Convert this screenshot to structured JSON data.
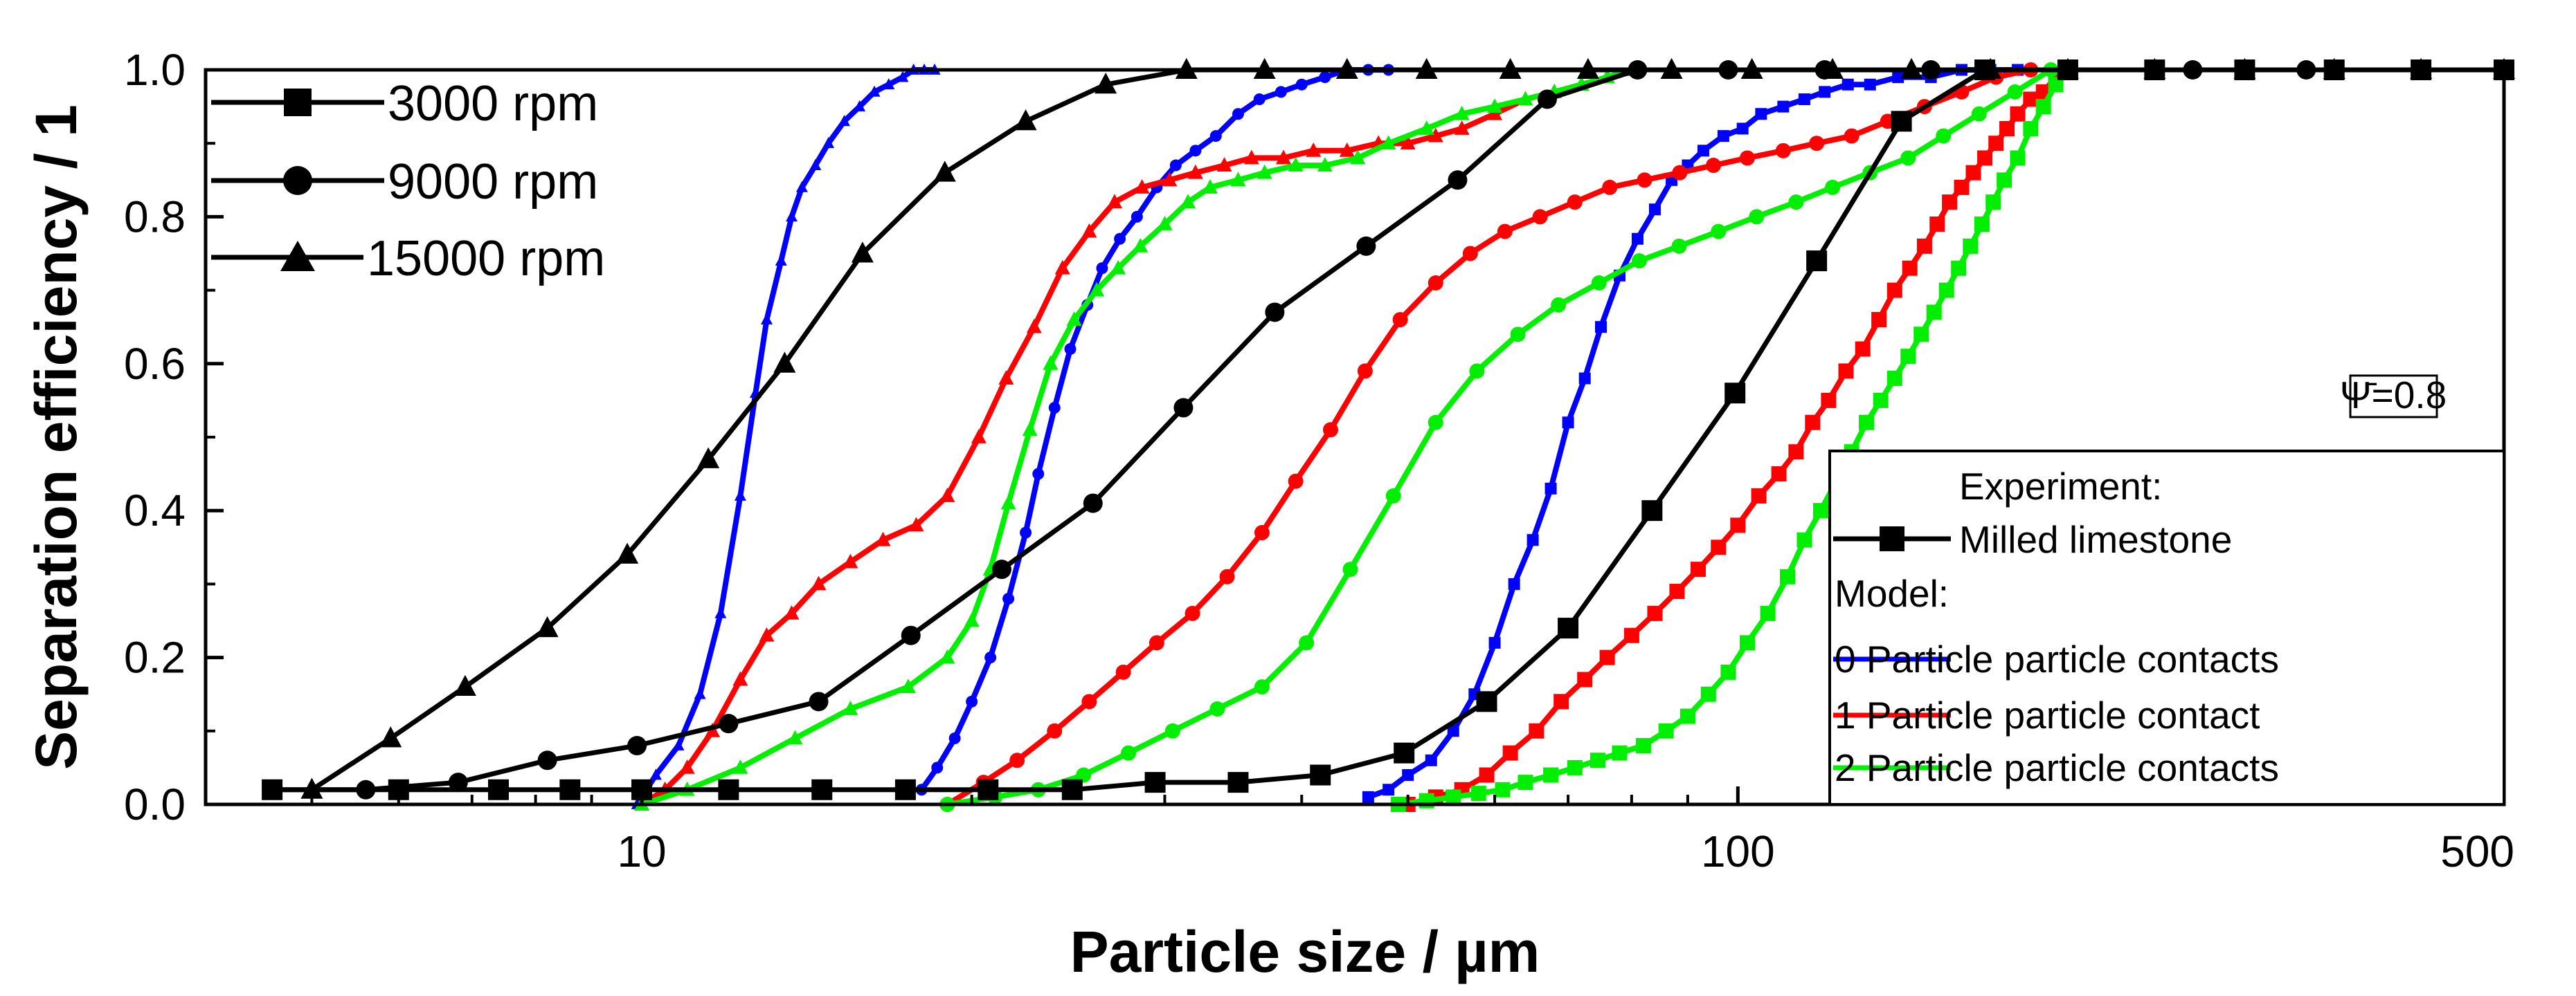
{
  "chart_data": {
    "type": "line",
    "title": "",
    "xlabel": "Particle size / µm",
    "ylabel": "Separation efficiency / 1",
    "x_scale": "log",
    "xlim": [
      4,
      500
    ],
    "ylim": [
      0,
      1
    ],
    "x_ticks": [
      {
        "value": 10,
        "label": "10"
      },
      {
        "value": 100,
        "label": "100"
      },
      {
        "value": 500,
        "label": "500"
      }
    ],
    "y_ticks": [
      {
        "value": 0,
        "label": "0.0"
      },
      {
        "value": 0.2,
        "label": "0.2"
      },
      {
        "value": 0.4,
        "label": "0.4"
      },
      {
        "value": 0.6,
        "label": "0.6"
      },
      {
        "value": 0.8,
        "label": "0.8"
      },
      {
        "value": 1.0,
        "label": "1.0"
      }
    ],
    "annotation": "Ψ̄=0.8",
    "colors": {
      "experiment": "#000000",
      "model0": "#0000ff",
      "model1": "#ff0000",
      "model2": "#00ee00"
    },
    "speed_legend": [
      {
        "label": "3000 rpm",
        "marker": "square"
      },
      {
        "label": "9000 rpm",
        "marker": "circle"
      },
      {
        "label": "15000 rpm",
        "marker": "triangle"
      }
    ],
    "type_legend": {
      "experiment_header": "Experiment:",
      "experiment_label": "Milled limestone",
      "model_header": "Model:",
      "model_labels": [
        "0 Particle particle contacts",
        "1 Particle particle contact",
        "2 Particle particle contacts"
      ]
    },
    "series": [
      {
        "name": "Experiment 3000 rpm",
        "group": "experiment",
        "marker": "square",
        "marker_size": 30,
        "x": [
          4.6,
          6.0,
          7.4,
          8.6,
          10,
          12,
          14.6,
          17.4,
          20.7,
          24.7,
          29.4,
          35,
          41.6,
          49.6,
          59,
          70,
          83.5,
          99.4,
          118,
          141,
          168,
          200,
          240,
          290,
          350,
          420,
          500
        ],
        "y": [
          0.02,
          0.02,
          0.02,
          0.02,
          0.02,
          0.02,
          0.02,
          0.02,
          0.02,
          0.02,
          0.03,
          0.03,
          0.04,
          0.07,
          0.14,
          0.24,
          0.4,
          0.56,
          0.74,
          0.93,
          1.0,
          1.0,
          1.0,
          1.0,
          1.0,
          1.0,
          1.0
        ]
      },
      {
        "name": "Experiment 9000 rpm",
        "group": "experiment",
        "marker": "circle",
        "marker_size": 28,
        "x": [
          4.6,
          5.6,
          6.8,
          8.2,
          9.9,
          12,
          14.5,
          17.6,
          21.3,
          25.8,
          31.2,
          37.8,
          45.8,
          55.5,
          67,
          81,
          98,
          120,
          150,
          200,
          260,
          330,
          420,
          500
        ],
        "y": [
          0.02,
          0.02,
          0.03,
          0.06,
          0.08,
          0.11,
          0.14,
          0.23,
          0.32,
          0.41,
          0.54,
          0.67,
          0.76,
          0.85,
          0.96,
          1.0,
          1.0,
          1.0,
          1.0,
          1.0,
          1.0,
          1.0,
          1.0,
          1.0
        ]
      },
      {
        "name": "Experiment 15000 rpm",
        "group": "experiment",
        "marker": "triangle",
        "marker_size": 32,
        "x": [
          5.0,
          5.9,
          6.9,
          8.2,
          9.7,
          11.5,
          13.5,
          15.9,
          18.9,
          22.4,
          26.5,
          31.4,
          37,
          44,
          52,
          62,
          73,
          87,
          103,
          122,
          144,
          170,
          200,
          240,
          290,
          350,
          420,
          500
        ],
        "y": [
          0.02,
          0.09,
          0.16,
          0.24,
          0.34,
          0.47,
          0.6,
          0.75,
          0.86,
          0.93,
          0.98,
          1.0,
          1.0,
          1.0,
          1.0,
          1.0,
          1.0,
          1.0,
          1.0,
          1.0,
          1.0,
          1.0,
          1.0,
          1.0,
          1.0,
          1.0,
          1.0,
          1.0
        ]
      },
      {
        "name": "Model 0 contacts 15000 rpm",
        "group": "model0",
        "marker": "triangle",
        "marker_size": 17,
        "connect_sparse": true,
        "x": [
          9.9,
          10.3,
          10.8,
          11.3,
          11.8,
          12.3,
          12.7,
          13.0,
          13.4,
          13.7,
          14.0,
          14.4,
          14.8,
          15.3,
          15.8,
          16.3,
          16.8,
          17.3,
          17.7,
          18.1,
          18.5
        ],
        "y": [
          0.0,
          0.04,
          0.08,
          0.15,
          0.26,
          0.42,
          0.56,
          0.66,
          0.74,
          0.8,
          0.84,
          0.87,
          0.9,
          0.93,
          0.95,
          0.97,
          0.98,
          0.99,
          1.0,
          1.0,
          1.0
        ]
      },
      {
        "name": "Model 0 contacts 9000 rpm",
        "group": "model0",
        "marker": "circle",
        "marker_size": 17,
        "x": [
          18.0,
          18.6,
          19.3,
          20.0,
          20.8,
          21.6,
          22.4,
          23.0,
          23.8,
          24.6,
          25.5,
          26.3,
          27.3,
          28.3,
          29.5,
          30.7,
          32.0,
          33.4,
          35.0,
          36.6,
          38.3,
          40.0,
          42.0,
          44.0,
          46.0,
          48.0
        ],
        "y": [
          0.02,
          0.05,
          0.09,
          0.14,
          0.2,
          0.28,
          0.37,
          0.45,
          0.54,
          0.62,
          0.68,
          0.73,
          0.77,
          0.8,
          0.84,
          0.87,
          0.89,
          0.91,
          0.94,
          0.96,
          0.97,
          0.98,
          0.99,
          1.0,
          1.0,
          1.0
        ]
      },
      {
        "name": "Model 0 contacts 3000 rpm",
        "group": "model0",
        "marker": "square",
        "marker_size": 17,
        "x": [
          46,
          48,
          50,
          52.5,
          55,
          57.5,
          60,
          62.5,
          65,
          67.5,
          70,
          72.5,
          75,
          78,
          81,
          84,
          87,
          90,
          93,
          97,
          101,
          105,
          110,
          115,
          120,
          126,
          132,
          140,
          150,
          160,
          170,
          180
        ],
        "y": [
          0.01,
          0.02,
          0.04,
          0.06,
          0.1,
          0.15,
          0.22,
          0.3,
          0.36,
          0.43,
          0.52,
          0.58,
          0.65,
          0.72,
          0.77,
          0.81,
          0.85,
          0.87,
          0.89,
          0.91,
          0.92,
          0.94,
          0.95,
          0.96,
          0.97,
          0.98,
          0.98,
          0.99,
          0.99,
          1.0,
          1.0,
          1.0
        ]
      },
      {
        "name": "Model 1 contact 15000 rpm",
        "group": "model1",
        "marker": "triangle",
        "marker_size": 22,
        "x": [
          10.0,
          10.5,
          11.0,
          11.6,
          12.3,
          13.0,
          13.7,
          14.5,
          15.5,
          16.6,
          17.8,
          19.0,
          20.3,
          21.5,
          22.8,
          24.2,
          25.6,
          27.0,
          28.6,
          30.3,
          32.0,
          34.0,
          36.0,
          38.5,
          41.0,
          44.0,
          47.0,
          50.0,
          53.0,
          56.0,
          60.0,
          64.0,
          68.0,
          72.0,
          76.0,
          80.0
        ],
        "y": [
          0.0,
          0.02,
          0.05,
          0.1,
          0.17,
          0.23,
          0.26,
          0.3,
          0.33,
          0.36,
          0.38,
          0.42,
          0.5,
          0.58,
          0.65,
          0.73,
          0.78,
          0.82,
          0.84,
          0.85,
          0.86,
          0.87,
          0.88,
          0.88,
          0.89,
          0.89,
          0.9,
          0.9,
          0.91,
          0.92,
          0.94,
          0.96,
          0.97,
          0.98,
          0.99,
          1.0
        ]
      },
      {
        "name": "Model 1 contact 9000 rpm",
        "group": "model1",
        "marker": "circle",
        "marker_size": 22,
        "x": [
          19.0,
          20.5,
          22.0,
          23.8,
          25.6,
          27.5,
          29.5,
          31.8,
          34.2,
          36.8,
          39.5,
          42.5,
          45.7,
          49.2,
          53,
          57,
          61.3,
          66,
          71,
          76.4,
          82.2,
          88.5,
          95,
          102,
          110,
          118,
          127,
          137,
          148,
          160,
          172,
          185
        ],
        "y": [
          0.0,
          0.03,
          0.06,
          0.1,
          0.14,
          0.18,
          0.22,
          0.26,
          0.31,
          0.37,
          0.44,
          0.51,
          0.59,
          0.66,
          0.71,
          0.75,
          0.78,
          0.8,
          0.82,
          0.84,
          0.85,
          0.86,
          0.87,
          0.88,
          0.89,
          0.9,
          0.91,
          0.93,
          0.95,
          0.97,
          0.99,
          1.0
        ]
      },
      {
        "name": "Model 1 contact 3000 rpm",
        "group": "model1",
        "marker": "square",
        "marker_size": 22,
        "x": [
          50,
          53,
          56,
          59,
          62,
          65.5,
          69,
          72.5,
          76,
          80,
          84,
          88,
          92,
          96,
          100,
          104.5,
          109,
          113,
          117,
          121,
          125.5,
          130,
          134.5,
          139,
          143.5,
          148,
          152,
          156,
          160,
          164,
          168,
          172,
          176,
          180,
          185,
          190,
          195,
          200
        ],
        "y": [
          0.0,
          0.01,
          0.02,
          0.04,
          0.07,
          0.1,
          0.14,
          0.17,
          0.2,
          0.23,
          0.26,
          0.29,
          0.32,
          0.35,
          0.38,
          0.42,
          0.45,
          0.48,
          0.52,
          0.55,
          0.59,
          0.62,
          0.66,
          0.7,
          0.73,
          0.76,
          0.79,
          0.82,
          0.84,
          0.86,
          0.88,
          0.9,
          0.92,
          0.94,
          0.96,
          0.97,
          0.99,
          1.0
        ]
      },
      {
        "name": "Model 2 contacts 15000 rpm",
        "group": "model2",
        "marker": "triangle",
        "marker_size": 22,
        "x": [
          10.0,
          11.0,
          12.3,
          13.8,
          15.5,
          17.5,
          19.0,
          20.0,
          20.8,
          21.6,
          22.6,
          23.6,
          24.8,
          26.0,
          27.2,
          28.5,
          30.0,
          31.5,
          33.0,
          35.0,
          37.0,
          39.5,
          42.0,
          45.0,
          48.0,
          52.0,
          56.0,
          60.0,
          64.0,
          68.0,
          72.0,
          76.0,
          80.0
        ],
        "y": [
          0.0,
          0.02,
          0.05,
          0.09,
          0.13,
          0.16,
          0.2,
          0.25,
          0.32,
          0.41,
          0.51,
          0.6,
          0.66,
          0.7,
          0.73,
          0.76,
          0.79,
          0.82,
          0.84,
          0.85,
          0.86,
          0.87,
          0.87,
          0.88,
          0.9,
          0.92,
          0.94,
          0.95,
          0.96,
          0.97,
          0.98,
          0.99,
          1.0
        ]
      },
      {
        "name": "Model 2 contacts 9000 rpm",
        "group": "model2",
        "marker": "circle",
        "marker_size": 22,
        "x": [
          19.0,
          21.0,
          23.0,
          25.3,
          27.8,
          30.5,
          33.5,
          36.8,
          40.4,
          44.3,
          48.5,
          53.0,
          57.8,
          63.0,
          68.6,
          74.7,
          81.3,
          88.4,
          96.0,
          104,
          113,
          122,
          132,
          143,
          154,
          166,
          179,
          193
        ],
        "y": [
          0.0,
          0.01,
          0.02,
          0.04,
          0.07,
          0.1,
          0.13,
          0.16,
          0.22,
          0.32,
          0.42,
          0.52,
          0.59,
          0.64,
          0.68,
          0.71,
          0.74,
          0.76,
          0.78,
          0.8,
          0.82,
          0.84,
          0.86,
          0.88,
          0.91,
          0.94,
          0.97,
          1.0
        ]
      },
      {
        "name": "Model 2 contacts 3000 rpm",
        "group": "model2",
        "marker": "square",
        "marker_size": 22,
        "x": [
          49,
          52,
          55,
          58,
          61,
          64,
          67.5,
          71,
          74.5,
          78,
          82,
          86,
          90,
          94,
          98,
          102,
          106.5,
          111,
          115,
          119,
          123,
          127,
          131,
          135,
          139,
          143,
          147,
          151,
          155,
          159,
          163,
          167,
          171,
          175,
          180,
          185,
          190,
          195,
          200
        ],
        "y": [
          0.0,
          0.005,
          0.01,
          0.015,
          0.02,
          0.03,
          0.04,
          0.05,
          0.06,
          0.07,
          0.08,
          0.1,
          0.12,
          0.15,
          0.18,
          0.22,
          0.26,
          0.31,
          0.36,
          0.4,
          0.44,
          0.48,
          0.52,
          0.55,
          0.58,
          0.61,
          0.64,
          0.67,
          0.7,
          0.73,
          0.76,
          0.79,
          0.82,
          0.85,
          0.88,
          0.92,
          0.95,
          0.98,
          1.0
        ]
      }
    ]
  }
}
